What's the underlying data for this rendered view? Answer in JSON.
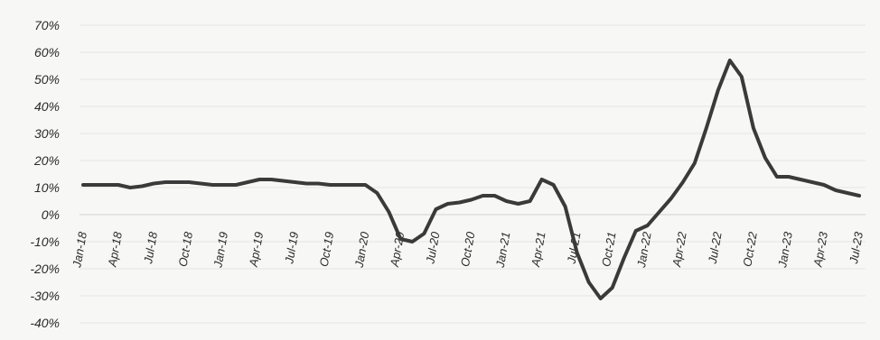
{
  "chart_data": {
    "type": "line",
    "title": "",
    "xlabel": "",
    "ylabel": "",
    "ylim": [
      -40,
      70
    ],
    "y_unit": "%",
    "y_ticks": [
      "70%",
      "60%",
      "50%",
      "40%",
      "30%",
      "20%",
      "10%",
      "0%",
      "-10%",
      "-20%",
      "-30%",
      "-40%"
    ],
    "y_tick_values": [
      70,
      60,
      50,
      40,
      30,
      20,
      10,
      0,
      -10,
      -20,
      -30,
      -40
    ],
    "x_ticks": [
      "Jan-18",
      "Apr-18",
      "Jul-18",
      "Oct-18",
      "Jan-19",
      "Apr-19",
      "Jul-19",
      "Oct-19",
      "Jan-20",
      "Apr-20",
      "Jul-20",
      "Oct-20",
      "Jan-21",
      "Apr-21",
      "Jul-21",
      "Oct-21",
      "Jan-22",
      "Apr-22",
      "Jul-22",
      "Oct-22",
      "Jan-23",
      "Apr-23",
      "Jul-23"
    ],
    "grid": "horizontal",
    "legend": "none",
    "line_color": "#3a3a3a",
    "series": [
      {
        "x": [
          "Jan-18",
          "Feb-18",
          "Mar-18",
          "Apr-18",
          "May-18",
          "Jun-18",
          "Jul-18",
          "Aug-18",
          "Sep-18",
          "Oct-18",
          "Nov-18",
          "Dec-18",
          "Jan-19",
          "Feb-19",
          "Mar-19",
          "Apr-19",
          "May-19",
          "Jun-19",
          "Jul-19",
          "Aug-19",
          "Sep-19",
          "Oct-19",
          "Nov-19",
          "Dec-19",
          "Jan-20",
          "Feb-20",
          "Mar-20",
          "Apr-20",
          "May-20",
          "Jun-20",
          "Jul-20",
          "Aug-20",
          "Sep-20",
          "Oct-20",
          "Nov-20",
          "Dec-20",
          "Jan-21",
          "Feb-21",
          "Mar-21",
          "Apr-21",
          "May-21",
          "Jun-21",
          "Jul-21",
          "Aug-21",
          "Sep-21",
          "Oct-21",
          "Nov-21",
          "Dec-21",
          "Jan-22",
          "Feb-22",
          "Mar-22",
          "Apr-22",
          "May-22",
          "Jun-22",
          "Jul-22",
          "Aug-22",
          "Sep-22",
          "Oct-22",
          "Nov-22",
          "Dec-22",
          "Jan-23",
          "Feb-23",
          "Mar-23",
          "Apr-23",
          "May-23",
          "Jun-23",
          "Jul-23"
        ],
        "values": [
          11,
          11,
          11,
          11,
          10,
          10.5,
          11.5,
          12,
          12,
          12,
          11.5,
          11,
          11,
          11,
          12,
          13,
          13,
          12.5,
          12,
          11.5,
          11.5,
          11,
          11,
          11,
          11,
          8,
          1,
          -9,
          -10,
          -7,
          2,
          4,
          4.5,
          5.5,
          7,
          7,
          5,
          4,
          5,
          13,
          11,
          3,
          -14,
          -25,
          -31,
          -27,
          -16,
          -6,
          -4,
          1,
          6,
          12,
          19,
          32,
          46,
          57,
          51,
          32,
          21,
          14,
          14,
          13,
          12,
          11,
          9,
          8,
          7
        ]
      }
    ]
  }
}
